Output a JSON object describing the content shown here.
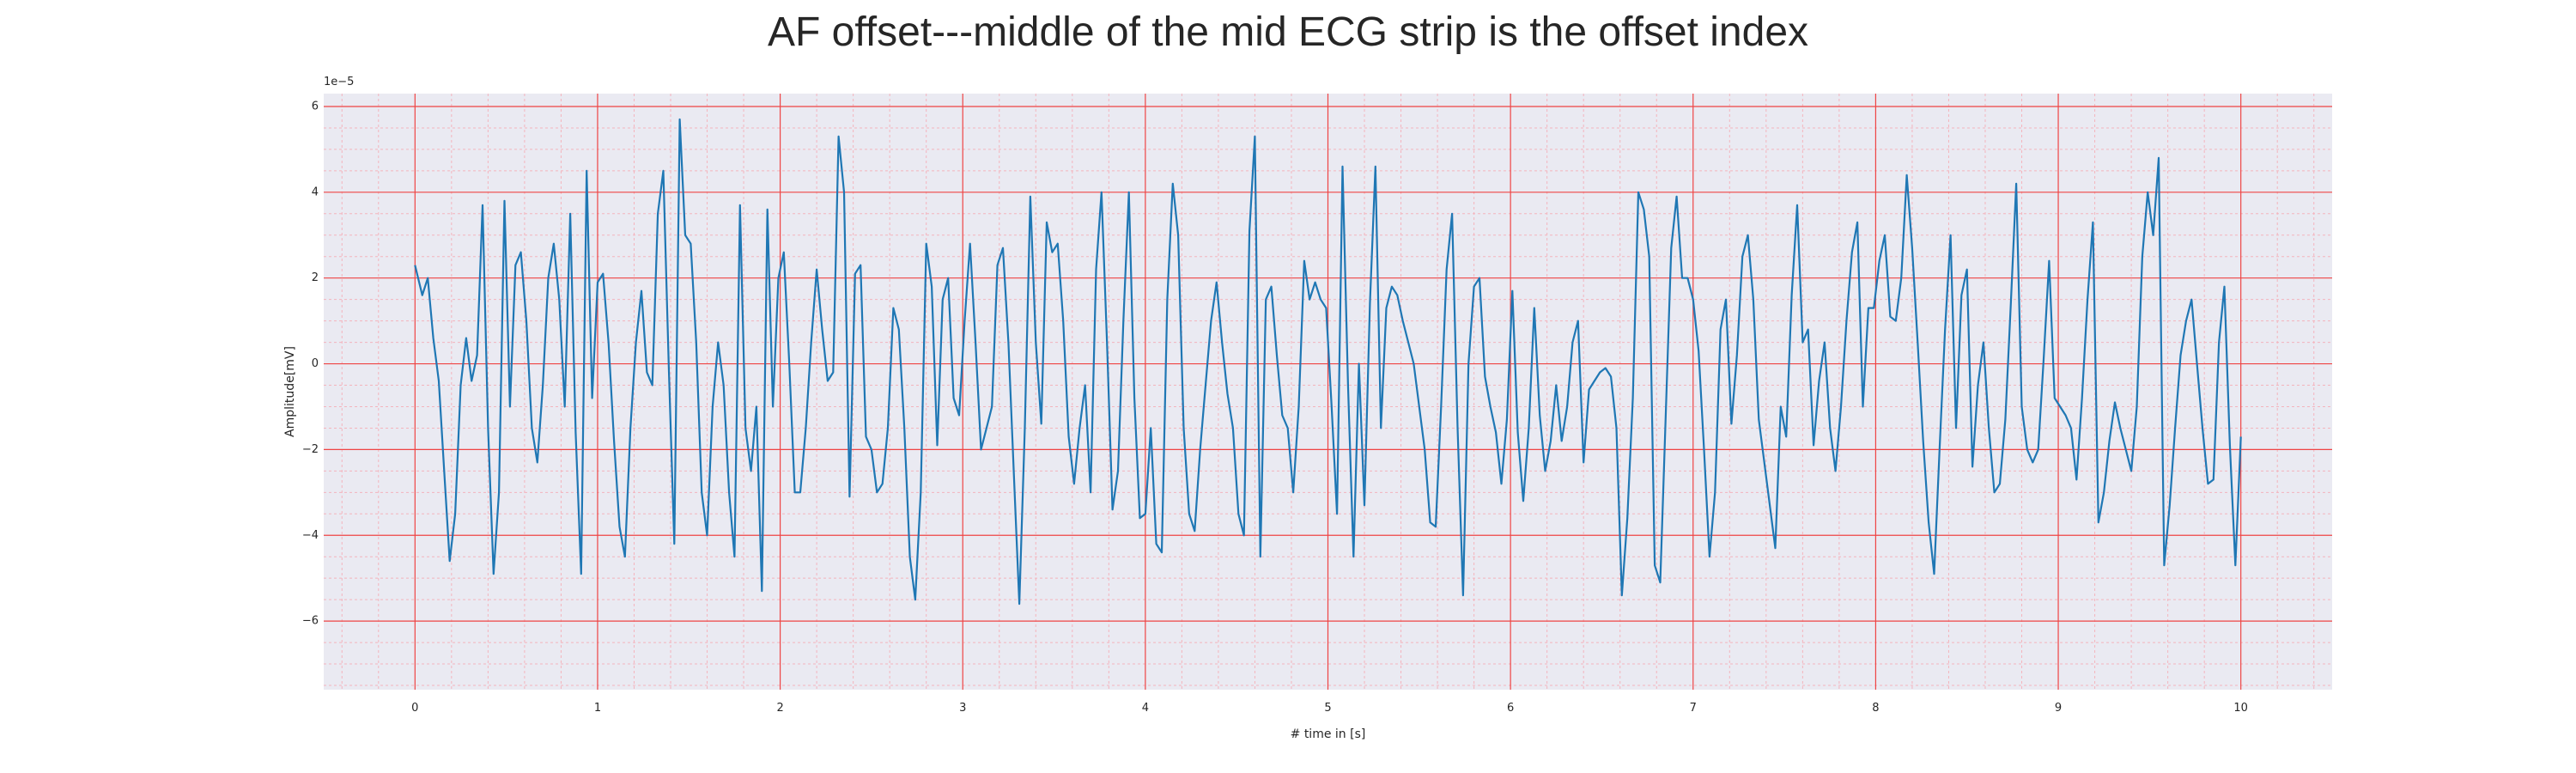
{
  "chart_data": {
    "type": "line",
    "title": "AF offset---middle of the mid ECG strip is the offset index",
    "xlabel": "# time in [s]",
    "ylabel": "Amplitude[mV]",
    "y_offset_text": "1e−5",
    "xlim": [
      -0.5,
      10.5
    ],
    "ylim": [
      -7.6,
      6.3
    ],
    "xticks": [
      0,
      1,
      2,
      3,
      4,
      5,
      6,
      7,
      8,
      9,
      10
    ],
    "yticks": [
      -6,
      -4,
      -2,
      0,
      2,
      4,
      6
    ],
    "grid": true,
    "colors": {
      "line": "#1f77b4",
      "background": "#eaeaf2",
      "major_grid": "#ef4444",
      "minor_grid": "#f4b4bd"
    },
    "series": [
      {
        "x": [
          0.0,
          0.04,
          0.07,
          0.1,
          0.13,
          0.16,
          0.19,
          0.22,
          0.25,
          0.28,
          0.31,
          0.34,
          0.37,
          0.4,
          0.43,
          0.46,
          0.49,
          0.52,
          0.55,
          0.58,
          0.61,
          0.64,
          0.67,
          0.7,
          0.73,
          0.76,
          0.79,
          0.82,
          0.85,
          0.88,
          0.91,
          0.94,
          0.97,
          1.0,
          1.03,
          1.06,
          1.09,
          1.12,
          1.15,
          1.18,
          1.21,
          1.24,
          1.27,
          1.3,
          1.33,
          1.36,
          1.39,
          1.42,
          1.45,
          1.48,
          1.51,
          1.54,
          1.57,
          1.6,
          1.63,
          1.66,
          1.69,
          1.72,
          1.75,
          1.78,
          1.81,
          1.84,
          1.87,
          1.9,
          1.93,
          1.96,
          1.99,
          2.02,
          2.05,
          2.08,
          2.11,
          2.14,
          2.17,
          2.2,
          2.23,
          2.26,
          2.29,
          2.32,
          2.35,
          2.38,
          2.41,
          2.44,
          2.47,
          2.5,
          2.53,
          2.56,
          2.59,
          2.62,
          2.65,
          2.68,
          2.71,
          2.74,
          2.77,
          2.8,
          2.83,
          2.86,
          2.89,
          2.92,
          2.95,
          2.98,
          3.01,
          3.04,
          3.07,
          3.1,
          3.13,
          3.16,
          3.19,
          3.22,
          3.25,
          3.28,
          3.31,
          3.34,
          3.37,
          3.4,
          3.43,
          3.46,
          3.49,
          3.52,
          3.55,
          3.58,
          3.61,
          3.64,
          3.67,
          3.7,
          3.73,
          3.76,
          3.79,
          3.82,
          3.85,
          3.88,
          3.91,
          3.94,
          3.97,
          4.0,
          4.03,
          4.06,
          4.09,
          4.12,
          4.15,
          4.18,
          4.21,
          4.24,
          4.27,
          4.3,
          4.33,
          4.36,
          4.39,
          4.42,
          4.45,
          4.48,
          4.51,
          4.54,
          4.57,
          4.6,
          4.63,
          4.66,
          4.69,
          4.72,
          4.75,
          4.78,
          4.81,
          4.84,
          4.87,
          4.9,
          4.93,
          4.96,
          4.99,
          5.02,
          5.05,
          5.08,
          5.11,
          5.14,
          5.17,
          5.2,
          5.23,
          5.26,
          5.29,
          5.32,
          5.35,
          5.38,
          5.41,
          5.44,
          5.47,
          5.5,
          5.53,
          5.56,
          5.59,
          5.62,
          5.65,
          5.68,
          5.71,
          5.74,
          5.77,
          5.8,
          5.83,
          5.86,
          5.89,
          5.92,
          5.95,
          5.98,
          6.01,
          6.04,
          6.07,
          6.1,
          6.13,
          6.16,
          6.19,
          6.22,
          6.25,
          6.28,
          6.31,
          6.34,
          6.37,
          6.4,
          6.43,
          6.46,
          6.49,
          6.52,
          6.55,
          6.58,
          6.61,
          6.64,
          6.67,
          6.7,
          6.73,
          6.76,
          6.79,
          6.82,
          6.85,
          6.88,
          6.91,
          6.94,
          6.97,
          7.0,
          7.03,
          7.06,
          7.09,
          7.12,
          7.15,
          7.18,
          7.21,
          7.24,
          7.27,
          7.3,
          7.33,
          7.36,
          7.39,
          7.42,
          7.45,
          7.48,
          7.51,
          7.54,
          7.57,
          7.6,
          7.63,
          7.66,
          7.69,
          7.72,
          7.75,
          7.78,
          7.81,
          7.84,
          7.87,
          7.9,
          7.93,
          7.96,
          7.99,
          8.02,
          8.05,
          8.08,
          8.11,
          8.14,
          8.17,
          8.2,
          8.23,
          8.26,
          8.29,
          8.32,
          8.35,
          8.38,
          8.41,
          8.44,
          8.47,
          8.5,
          8.53,
          8.56,
          8.59,
          8.62,
          8.65,
          8.68,
          8.71,
          8.74,
          8.77,
          8.8,
          8.83,
          8.86,
          8.89,
          8.92,
          8.95,
          8.98,
          9.01,
          9.04,
          9.07,
          9.1,
          9.13,
          9.16,
          9.19,
          9.22,
          9.25,
          9.28,
          9.31,
          9.34,
          9.37,
          9.4,
          9.43,
          9.46,
          9.49,
          9.52,
          9.55,
          9.58,
          9.61,
          9.64,
          9.67,
          9.7,
          9.73,
          9.76,
          9.79,
          9.82,
          9.85,
          9.88,
          9.91,
          9.94,
          9.97,
          10.0
        ],
        "y": [
          2.3,
          1.6,
          2.0,
          0.6,
          -0.4,
          -2.5,
          -4.6,
          -3.5,
          -0.5,
          0.6,
          -0.4,
          0.2,
          3.7,
          -1.5,
          -4.9,
          -3.0,
          3.8,
          -1.0,
          2.3,
          2.6,
          1.0,
          -1.5,
          -2.3,
          -0.5,
          2.0,
          2.8,
          1.5,
          -1.0,
          3.5,
          -1.6,
          -4.9,
          4.5,
          -0.8,
          1.9,
          2.1,
          0.5,
          -1.8,
          -3.8,
          -4.5,
          -1.5,
          0.5,
          1.7,
          -0.2,
          -0.5,
          3.5,
          4.5,
          -0.1,
          -4.2,
          5.7,
          3.0,
          2.8,
          0.5,
          -3.0,
          -4.0,
          -1.0,
          0.5,
          -0.5,
          -3.0,
          -4.5,
          3.7,
          -1.5,
          -2.5,
          -1.0,
          -5.3,
          3.6,
          -1.0,
          2.0,
          2.6,
          0.0,
          -3.0,
          -3.0,
          -1.5,
          0.5,
          2.2,
          0.8,
          -0.4,
          -0.2,
          5.3,
          4.0,
          -3.1,
          2.1,
          2.3,
          -1.7,
          -2.0,
          -3.0,
          -2.8,
          -1.5,
          1.3,
          0.8,
          -1.5,
          -4.5,
          -5.5,
          -3.0,
          2.8,
          1.8,
          -1.9,
          1.5,
          2.0,
          -0.8,
          -1.2,
          1.0,
          2.8,
          0.5,
          -2.0,
          -1.5,
          -1.0,
          2.3,
          2.7,
          0.5,
          -2.6,
          -5.6,
          -1.5,
          3.9,
          0.5,
          -1.4,
          3.3,
          2.6,
          2.8,
          1.0,
          -1.7,
          -2.8,
          -1.5,
          -0.5,
          -3.0,
          2.2,
          4.0,
          0.5,
          -3.4,
          -2.5,
          1.0,
          4.0,
          -0.8,
          -3.6,
          -3.5,
          -1.5,
          -4.2,
          -4.4,
          1.5,
          4.2,
          3.0,
          -1.5,
          -3.5,
          -3.9,
          -2.0,
          -0.5,
          1.0,
          1.9,
          0.5,
          -0.7,
          -1.5,
          -3.5,
          -4.0,
          3.1,
          5.3,
          -4.5,
          1.5,
          1.8,
          0.2,
          -1.2,
          -1.5,
          -3.0,
          -1.0,
          2.4,
          1.5,
          1.9,
          1.5,
          1.3,
          -1.0,
          -3.5,
          4.6,
          -0.5,
          -4.5,
          0.0,
          -3.3,
          1.4,
          4.6,
          -1.5,
          1.3,
          1.8,
          1.6,
          1.0,
          0.5,
          0.0,
          -1.0,
          -2.0,
          -3.7,
          -3.8,
          -1.0,
          2.2,
          3.5,
          -1.5,
          -5.4,
          0.0,
          1.8,
          2.0,
          -0.3,
          -1.0,
          -1.6,
          -2.8,
          -1.3,
          1.7,
          -1.6,
          -3.2,
          -1.5,
          1.3,
          -1.2,
          -2.5,
          -1.8,
          -0.5,
          -1.8,
          -1.0,
          0.5,
          1.0,
          -2.3,
          -0.6,
          -0.4,
          -0.2,
          -0.1,
          -0.3,
          -1.5,
          -5.4,
          -3.6,
          -0.8,
          4.0,
          3.6,
          2.5,
          -4.7,
          -5.1,
          -1.2,
          2.7,
          3.9,
          2.0,
          2.0,
          1.5,
          0.3,
          -2.0,
          -4.5,
          -3.0,
          0.8,
          1.5,
          -1.4,
          0.2,
          2.5,
          3.0,
          1.5,
          -1.3,
          -2.3,
          -3.3,
          -4.3,
          -1.0,
          -1.7,
          1.6,
          3.7,
          0.5,
          0.8,
          -1.9,
          -0.4,
          0.5,
          -1.5,
          -2.5,
          -1.0,
          1.0,
          2.6,
          3.3,
          -1.0,
          1.3,
          1.3,
          2.4,
          3.0,
          1.1,
          1.0,
          2.0,
          4.4,
          2.7,
          0.5,
          -1.8,
          -3.7,
          -4.9,
          -2.0,
          0.8,
          3.0,
          -1.5,
          1.6,
          2.2,
          -2.4,
          -0.5,
          0.5,
          -1.5,
          -3.0,
          -2.8,
          -1.3,
          1.4,
          4.2,
          -1.0,
          -2.0,
          -2.3,
          -2.0,
          0.1,
          2.4,
          -0.8,
          -1.0,
          -1.2,
          -1.5,
          -2.7,
          -0.8,
          1.5,
          3.3,
          -3.7,
          -3.0,
          -1.8,
          -0.9,
          -1.5,
          -2.0,
          -2.5,
          -1.0,
          2.5,
          4.0,
          3.0,
          4.8,
          -4.7,
          -3.3,
          -1.5,
          0.2,
          1.0,
          1.5,
          0.0,
          -1.5,
          -2.8,
          -2.7,
          0.5,
          1.8,
          -1.9,
          -4.7,
          -1.7
        ]
      }
    ]
  }
}
